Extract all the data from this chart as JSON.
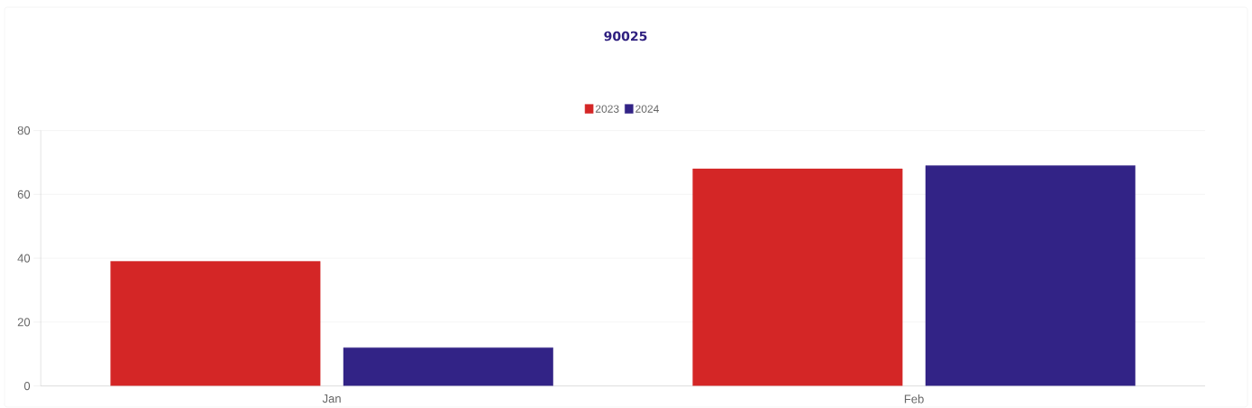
{
  "chart_data": {
    "type": "bar",
    "title": "90025",
    "categories": [
      "Jan",
      "Feb"
    ],
    "series": [
      {
        "name": "2023",
        "color": "#d42626",
        "values": [
          39,
          68
        ]
      },
      {
        "name": "2024",
        "color": "#322386",
        "values": [
          12,
          69
        ]
      }
    ],
    "ylim": [
      0,
      80
    ],
    "yticks": [
      0,
      20,
      40,
      60,
      80
    ],
    "grid": "y",
    "legend": "top"
  }
}
